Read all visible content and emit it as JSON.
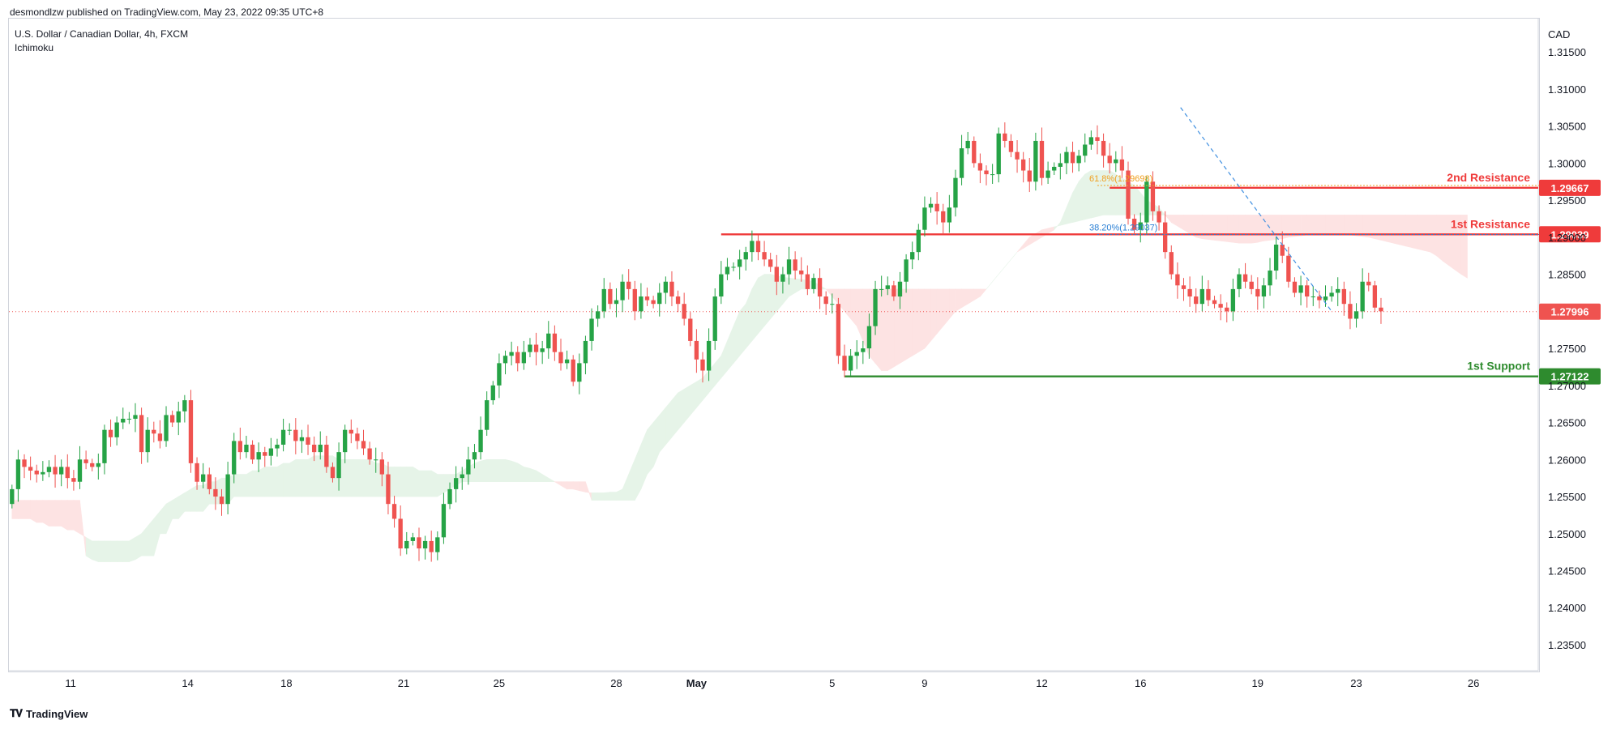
{
  "header": {
    "published": "desmondlzw published on TradingView.com, May 23, 2022 09:35 UTC+8"
  },
  "legend": {
    "symbol": "U.S. Dollar / Canadian Dollar, 4h, FXCM",
    "indicator": "Ichimoku"
  },
  "footer": {
    "brand": "TradingView",
    "logo_icon": "tradingview-logo-icon"
  },
  "colors": {
    "up": "#26a346",
    "down": "#ef5350",
    "resistance": "#ef3b3b",
    "support": "#2e8b2e",
    "cloud_bull": "#e6f4e8",
    "cloud_bear": "#fde3e3",
    "fib618": "#f0a020",
    "fib382": "#2a7fd4",
    "trendline": "#3f8fe0",
    "current": "#ef5350"
  },
  "chart_data": {
    "type": "candlestick",
    "symbol": "USDCAD",
    "timeframe": "4h",
    "currency_label": "CAD",
    "ylim": [
      1.2315,
      1.3195
    ],
    "y_ticks": [
      "1.23500",
      "1.24000",
      "1.24500",
      "1.25000",
      "1.25500",
      "1.26000",
      "1.26500",
      "1.27000",
      "1.27500",
      "1.28000",
      "1.28500",
      "1.29000",
      "1.29500",
      "1.30000",
      "1.30500",
      "1.31000",
      "1.31500"
    ],
    "x_ticks": [
      {
        "label": "11",
        "bar": 9.5
      },
      {
        "label": "14",
        "bar": 28.5
      },
      {
        "label": "18",
        "bar": 44.5
      },
      {
        "label": "21",
        "bar": 63.5
      },
      {
        "label": "25",
        "bar": 79
      },
      {
        "label": "28",
        "bar": 98
      },
      {
        "label": "May",
        "bar": 111
      },
      {
        "label": "5",
        "bar": 133
      },
      {
        "label": "9",
        "bar": 148
      },
      {
        "label": "12",
        "bar": 167
      },
      {
        "label": "16",
        "bar": 183
      },
      {
        "label": "19",
        "bar": 202
      },
      {
        "label": "23",
        "bar": 218
      },
      {
        "label": "26",
        "bar": 237
      }
    ],
    "x_bars_total": 248,
    "candles_close": [
      1.256,
      1.26,
      1.259,
      1.2585,
      1.258,
      1.2583,
      1.259,
      1.258,
      1.259,
      1.2575,
      1.257,
      1.26,
      1.2595,
      1.259,
      1.2595,
      1.264,
      1.263,
      1.265,
      1.2655,
      1.2655,
      1.266,
      1.261,
      1.264,
      1.2635,
      1.2625,
      1.266,
      1.265,
      1.2665,
      1.268,
      1.2595,
      1.257,
      1.258,
      1.256,
      1.255,
      1.254,
      1.258,
      1.2625,
      1.261,
      1.262,
      1.26,
      1.261,
      1.2605,
      1.2615,
      1.262,
      1.264,
      1.264,
      1.2625,
      1.263,
      1.262,
      1.261,
      1.262,
      1.259,
      1.2575,
      1.261,
      1.264,
      1.2635,
      1.2625,
      1.2615,
      1.26,
      1.26,
      1.258,
      1.254,
      1.252,
      1.248,
      1.249,
      1.2495,
      1.248,
      1.249,
      1.2475,
      1.2495,
      1.254,
      1.256,
      1.2575,
      1.258,
      1.26,
      1.261,
      1.264,
      1.268,
      1.27,
      1.273,
      1.274,
      1.2745,
      1.273,
      1.2745,
      1.2755,
      1.2745,
      1.275,
      1.277,
      1.2745,
      1.273,
      1.2735,
      1.2705,
      1.273,
      1.276,
      1.279,
      1.28,
      1.283,
      1.281,
      1.2815,
      1.284,
      1.283,
      1.28,
      1.282,
      1.2815,
      1.281,
      1.2825,
      1.284,
      1.282,
      1.281,
      1.279,
      1.276,
      1.2735,
      1.272,
      1.276,
      1.282,
      1.285,
      1.286,
      1.286,
      1.287,
      1.288,
      1.2895,
      1.288,
      1.287,
      1.286,
      1.284,
      1.285,
      1.287,
      1.2855,
      1.285,
      1.283,
      1.2845,
      1.282,
      1.281,
      1.281,
      1.274,
      1.272,
      1.274,
      1.2745,
      1.275,
      1.278,
      1.283,
      1.283,
      1.2835,
      1.282,
      1.284,
      1.287,
      1.288,
      1.291,
      1.294,
      1.2945,
      1.2935,
      1.292,
      1.294,
      1.298,
      1.302,
      1.303,
      1.3,
      1.299,
      1.2985,
      1.2985,
      1.304,
      1.303,
      1.3015,
      1.3005,
      1.299,
      1.2975,
      1.303,
      1.298,
      1.299,
      1.2995,
      1.3,
      1.3015,
      1.3,
      1.301,
      1.3025,
      1.3035,
      1.303,
      1.301,
      1.3,
      1.3005,
      1.299,
      1.2925,
      1.291,
      1.292,
      1.2975,
      1.2935,
      1.292,
      1.288,
      1.285,
      1.2835,
      1.283,
      1.282,
      1.281,
      1.283,
      1.2815,
      1.281,
      1.2805,
      1.28,
      1.283,
      1.285,
      1.284,
      1.283,
      1.282,
      1.2835,
      1.2855,
      1.289,
      1.2875,
      1.284,
      1.2825,
      1.2835,
      1.282,
      1.282,
      1.2815,
      1.282,
      1.2825,
      1.283,
      1.281,
      1.279,
      1.28,
      1.284,
      1.2835,
      1.2805,
      1.28
    ],
    "ichimoku_cloud": {
      "start_bar": 0,
      "span_a": [
        1.252,
        1.252,
        1.252,
        1.252,
        1.2515,
        1.2515,
        1.251,
        1.251,
        1.251,
        1.2505,
        1.2505,
        1.25,
        1.2495,
        1.249,
        1.249,
        1.249,
        1.249,
        1.249,
        1.249,
        1.249,
        1.2495,
        1.25,
        1.251,
        1.252,
        1.253,
        1.254,
        1.2545,
        1.255,
        1.2555,
        1.256,
        1.2565,
        1.2565,
        1.257,
        1.257,
        1.2575,
        1.2575,
        1.258,
        1.258,
        1.258,
        1.2585,
        1.2585,
        1.259,
        1.259,
        1.259,
        1.2595,
        1.2595,
        1.26,
        1.26,
        1.26,
        1.2605,
        1.2605,
        1.2605,
        1.2605,
        1.26,
        1.26,
        1.26,
        1.26,
        1.26,
        1.26,
        1.2595,
        1.2595,
        1.259,
        1.259,
        1.259,
        1.259,
        1.259,
        1.2585,
        1.2585,
        1.2585,
        1.258,
        1.258,
        1.258,
        1.258,
        1.2585,
        1.259,
        1.2595,
        1.2598,
        1.26,
        1.26,
        1.26,
        1.26,
        1.2598,
        1.2595,
        1.259,
        1.2588,
        1.2585,
        1.258,
        1.2575,
        1.257,
        1.2565,
        1.256,
        1.256,
        1.2558,
        1.2556,
        1.2555,
        1.2555,
        1.2555,
        1.2556,
        1.2556,
        1.256,
        1.258,
        1.26,
        1.262,
        1.264,
        1.265,
        1.266,
        1.267,
        1.268,
        1.269,
        1.2695,
        1.27,
        1.2705,
        1.271,
        1.272,
        1.273,
        1.274,
        1.276,
        1.278,
        1.28,
        1.281,
        1.283,
        1.2845,
        1.285,
        1.285,
        1.2848,
        1.2846,
        1.2845,
        1.2844,
        1.2843,
        1.2842,
        1.284,
        1.2835,
        1.283,
        1.282,
        1.281,
        1.28,
        1.279,
        1.278,
        1.276,
        1.274,
        1.273,
        1.272,
        1.272,
        1.2725,
        1.273,
        1.2735,
        1.274,
        1.2745,
        1.275,
        1.276,
        1.277,
        1.278,
        1.279,
        1.28,
        1.2805,
        1.281,
        1.2815,
        1.282,
        1.283,
        1.284,
        1.285,
        1.286,
        1.287,
        1.288,
        1.2885,
        1.289,
        1.2895,
        1.29,
        1.2905,
        1.291,
        1.292,
        1.294,
        1.296,
        1.2975,
        1.2985,
        1.299,
        1.299,
        1.299,
        1.299,
        1.2985,
        1.298,
        1.2975,
        1.297,
        1.296,
        1.295,
        1.2945,
        1.294,
        1.293,
        1.292,
        1.2915,
        1.291,
        1.2905,
        1.29,
        1.2898,
        1.2897,
        1.2896,
        1.2895,
        1.2894,
        1.2893,
        1.2892,
        1.2892,
        1.2892,
        1.2893,
        1.2895,
        1.2896,
        1.2897,
        1.2898,
        1.29,
        1.2901,
        1.2902,
        1.2903,
        1.2904,
        1.2905,
        1.2905,
        1.2905,
        1.2905,
        1.2904,
        1.2903,
        1.2902,
        1.2901,
        1.29,
        1.2898,
        1.2896,
        1.2894,
        1.2892,
        1.289,
        1.2888,
        1.2886,
        1.2884,
        1.2882,
        1.288,
        1.2875,
        1.2868,
        1.2862,
        1.2856,
        1.285,
        1.2845
      ],
      "span_b": [
        1.2545,
        1.2545,
        1.2545,
        1.2545,
        1.2545,
        1.2545,
        1.2545,
        1.2545,
        1.2545,
        1.2545,
        1.2545,
        1.2545,
        1.247,
        1.2465,
        1.2462,
        1.2462,
        1.2462,
        1.2462,
        1.2462,
        1.2462,
        1.2465,
        1.247,
        1.247,
        1.247,
        1.25,
        1.25,
        1.252,
        1.252,
        1.253,
        1.253,
        1.253,
        1.253,
        1.254,
        1.254,
        1.254,
        1.254,
        1.255,
        1.255,
        1.255,
        1.255,
        1.255,
        1.255,
        1.255,
        1.255,
        1.255,
        1.255,
        1.255,
        1.255,
        1.255,
        1.255,
        1.255,
        1.255,
        1.255,
        1.255,
        1.255,
        1.255,
        1.255,
        1.255,
        1.255,
        1.255,
        1.255,
        1.255,
        1.255,
        1.255,
        1.255,
        1.255,
        1.255,
        1.255,
        1.255,
        1.255,
        1.2555,
        1.256,
        1.2565,
        1.257,
        1.257,
        1.257,
        1.257,
        1.257,
        1.257,
        1.257,
        1.257,
        1.257,
        1.257,
        1.257,
        1.257,
        1.257,
        1.257,
        1.257,
        1.257,
        1.257,
        1.257,
        1.257,
        1.257,
        1.257,
        1.2545,
        1.2545,
        1.2545,
        1.2545,
        1.2545,
        1.2545,
        1.2545,
        1.2545,
        1.256,
        1.258,
        1.259,
        1.261,
        1.262,
        1.263,
        1.264,
        1.265,
        1.266,
        1.267,
        1.268,
        1.269,
        1.27,
        1.271,
        1.272,
        1.273,
        1.274,
        1.275,
        1.276,
        1.277,
        1.278,
        1.279,
        1.28,
        1.281,
        1.282,
        1.2825,
        1.283,
        1.283,
        1.283,
        1.283,
        1.283,
        1.283,
        1.283,
        1.283,
        1.283,
        1.283,
        1.283,
        1.283,
        1.283,
        1.283,
        1.283,
        1.283,
        1.283,
        1.283,
        1.283,
        1.283,
        1.283,
        1.283,
        1.283,
        1.283,
        1.283,
        1.283,
        1.283,
        1.283,
        1.283,
        1.283,
        1.283,
        1.284,
        1.285,
        1.286,
        1.287,
        1.288,
        1.289,
        1.29,
        1.2905,
        1.291,
        1.2912,
        1.2914,
        1.2916,
        1.2918,
        1.292,
        1.2922,
        1.2924,
        1.2926,
        1.2928,
        1.293,
        1.293,
        1.293,
        1.293,
        1.293,
        1.293,
        1.293,
        1.293,
        1.293,
        1.293,
        1.293,
        1.293,
        1.293,
        1.293,
        1.293,
        1.293,
        1.293,
        1.293,
        1.293,
        1.293,
        1.293,
        1.293,
        1.293,
        1.293,
        1.293,
        1.293,
        1.293,
        1.293,
        1.293,
        1.293,
        1.293,
        1.293,
        1.293,
        1.293,
        1.293,
        1.293,
        1.293,
        1.293,
        1.293,
        1.293,
        1.293,
        1.293,
        1.293,
        1.293,
        1.293,
        1.293,
        1.293,
        1.293,
        1.293,
        1.293,
        1.293,
        1.293,
        1.293,
        1.293,
        1.293,
        1.293,
        1.293,
        1.293,
        1.293,
        1.293,
        1.293,
        1.293,
        1.293,
        1.293,
        1.293,
        1.293,
        1.293,
        1.293,
        1.293,
        1.293,
        1.293,
        1.293,
        1.293,
        1.293,
        1.293,
        1.293,
        1.293,
        1.293,
        1.293,
        1.293,
        1.293,
        1.293
      ]
    },
    "levels": [
      {
        "label": "2nd Resistance",
        "value": 1.29667,
        "price_label": "1.29667",
        "start_bar": 178,
        "kind": "resistance"
      },
      {
        "label": "1st Resistance",
        "value": 1.29039,
        "price_label": "1.29039",
        "start_bar": 115,
        "kind": "resistance"
      },
      {
        "label": "1st Support",
        "value": 1.27122,
        "price_label": "1.27122",
        "start_bar": 135,
        "kind": "support"
      }
    ],
    "current_price": {
      "value": 1.27996,
      "label": "1.27996"
    },
    "fib_levels": [
      {
        "label": "61.8%(1.29698)",
        "value": 1.29698,
        "start_bar": 176,
        "end_bar": 248,
        "kind": "fib618"
      },
      {
        "label": "38.20%(1.29037)",
        "value": 1.29037,
        "start_bar": 176,
        "end_bar": 248,
        "kind": "fib382"
      }
    ],
    "trendline": {
      "x1": 189.5,
      "y1": 1.3075,
      "x2": 214,
      "y2": 1.28
    }
  }
}
